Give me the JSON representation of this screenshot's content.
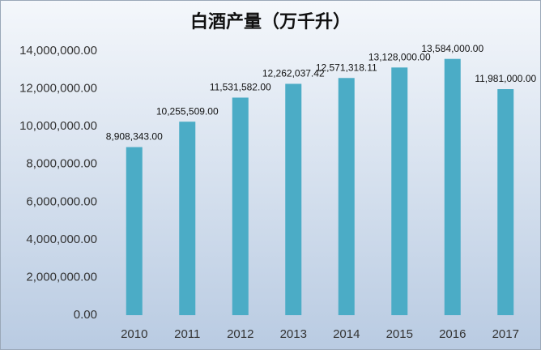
{
  "chart_data": {
    "type": "bar",
    "title": "白酒产量（万千升）",
    "categories": [
      "2010",
      "2011",
      "2012",
      "2013",
      "2014",
      "2015",
      "2016",
      "2017"
    ],
    "values": [
      8908343,
      10255509,
      11531582,
      12262037.42,
      12571318.11,
      13128000,
      13584000,
      11981000
    ],
    "value_labels": [
      "8,908,343.00",
      "10,255,509.00",
      "11,531,582.00",
      "12,262,037.42",
      "12,571,318.11",
      "13,128,000.00",
      "13,584,000.00",
      "11,981,000.00"
    ],
    "color": "#4bacc6",
    "ylim": [
      0,
      14000000
    ],
    "yticks": [
      {
        "value": 0,
        "label": "0.00"
      },
      {
        "value": 2000000,
        "label": "2,000,000.00"
      },
      {
        "value": 4000000,
        "label": "4,000,000.00"
      },
      {
        "value": 6000000,
        "label": "6,000,000.00"
      },
      {
        "value": 8000000,
        "label": "8,000,000.00"
      },
      {
        "value": 10000000,
        "label": "10,000,000.00"
      },
      {
        "value": 12000000,
        "label": "12,000,000.00"
      },
      {
        "value": 14000000,
        "label": "14,000,000.00"
      }
    ],
    "grid": false
  }
}
